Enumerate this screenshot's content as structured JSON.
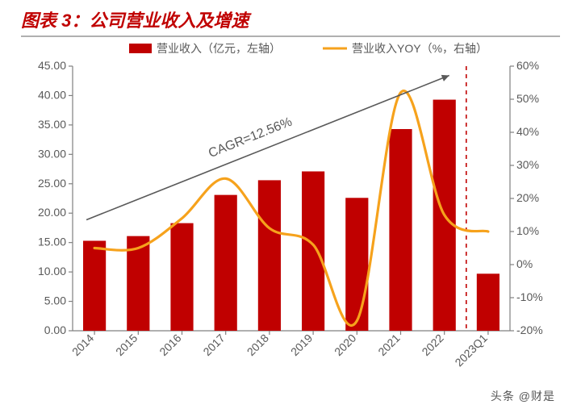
{
  "title": "图表 3：公司营业收入及增速",
  "watermark": "头条 @财是",
  "chart": {
    "type": "bar+line",
    "background_color": "#ffffff",
    "axis_color": "#808080",
    "axis_width": 1.2,
    "tick_label_color": "#595959",
    "tick_label_fontsize": 14,
    "legend": {
      "items": [
        {
          "key": "bar",
          "label": "营业收入（亿元，左轴）",
          "color": "#c00000",
          "swatch": "rect"
        },
        {
          "key": "line",
          "label": "营业收入YOY（%，右轴）",
          "color": "#f6a21c",
          "swatch": "line"
        }
      ],
      "fontsize": 14,
      "color": "#595959",
      "position": "top-center"
    },
    "annotation": {
      "text": "CAGR=12.56%",
      "fontsize": 16,
      "color": "#595959",
      "arrow_color": "#595959",
      "arrow_width": 1.6,
      "start_year": "2014",
      "end_year": "2022"
    },
    "categories": [
      "2014",
      "2015",
      "2016",
      "2017",
      "2018",
      "2019",
      "2020",
      "2021",
      "2022",
      "2023Q1"
    ],
    "divider_after_index": 8,
    "divider_color": "#c00000",
    "divider_dash": "5,5",
    "bars": {
      "color": "#c00000",
      "width_ratio": 0.52,
      "values": [
        15.3,
        16.1,
        18.3,
        23.1,
        25.6,
        27.1,
        22.6,
        34.3,
        39.3,
        9.7
      ]
    },
    "line": {
      "color": "#f6a21c",
      "width": 3.2,
      "values": [
        5,
        5,
        14,
        26,
        11,
        6,
        -17,
        52,
        15,
        10
      ]
    },
    "left_axis": {
      "min": 0,
      "max": 45,
      "step": 5,
      "labels": [
        "0.00",
        "5.00",
        "10.00",
        "15.00",
        "20.00",
        "25.00",
        "30.00",
        "35.00",
        "40.00",
        "45.00"
      ]
    },
    "right_axis": {
      "min": -20,
      "max": 60,
      "step": 10,
      "labels": [
        "-20%",
        "-10%",
        "0%",
        "10%",
        "20%",
        "30%",
        "40%",
        "50%",
        "60%"
      ]
    }
  }
}
